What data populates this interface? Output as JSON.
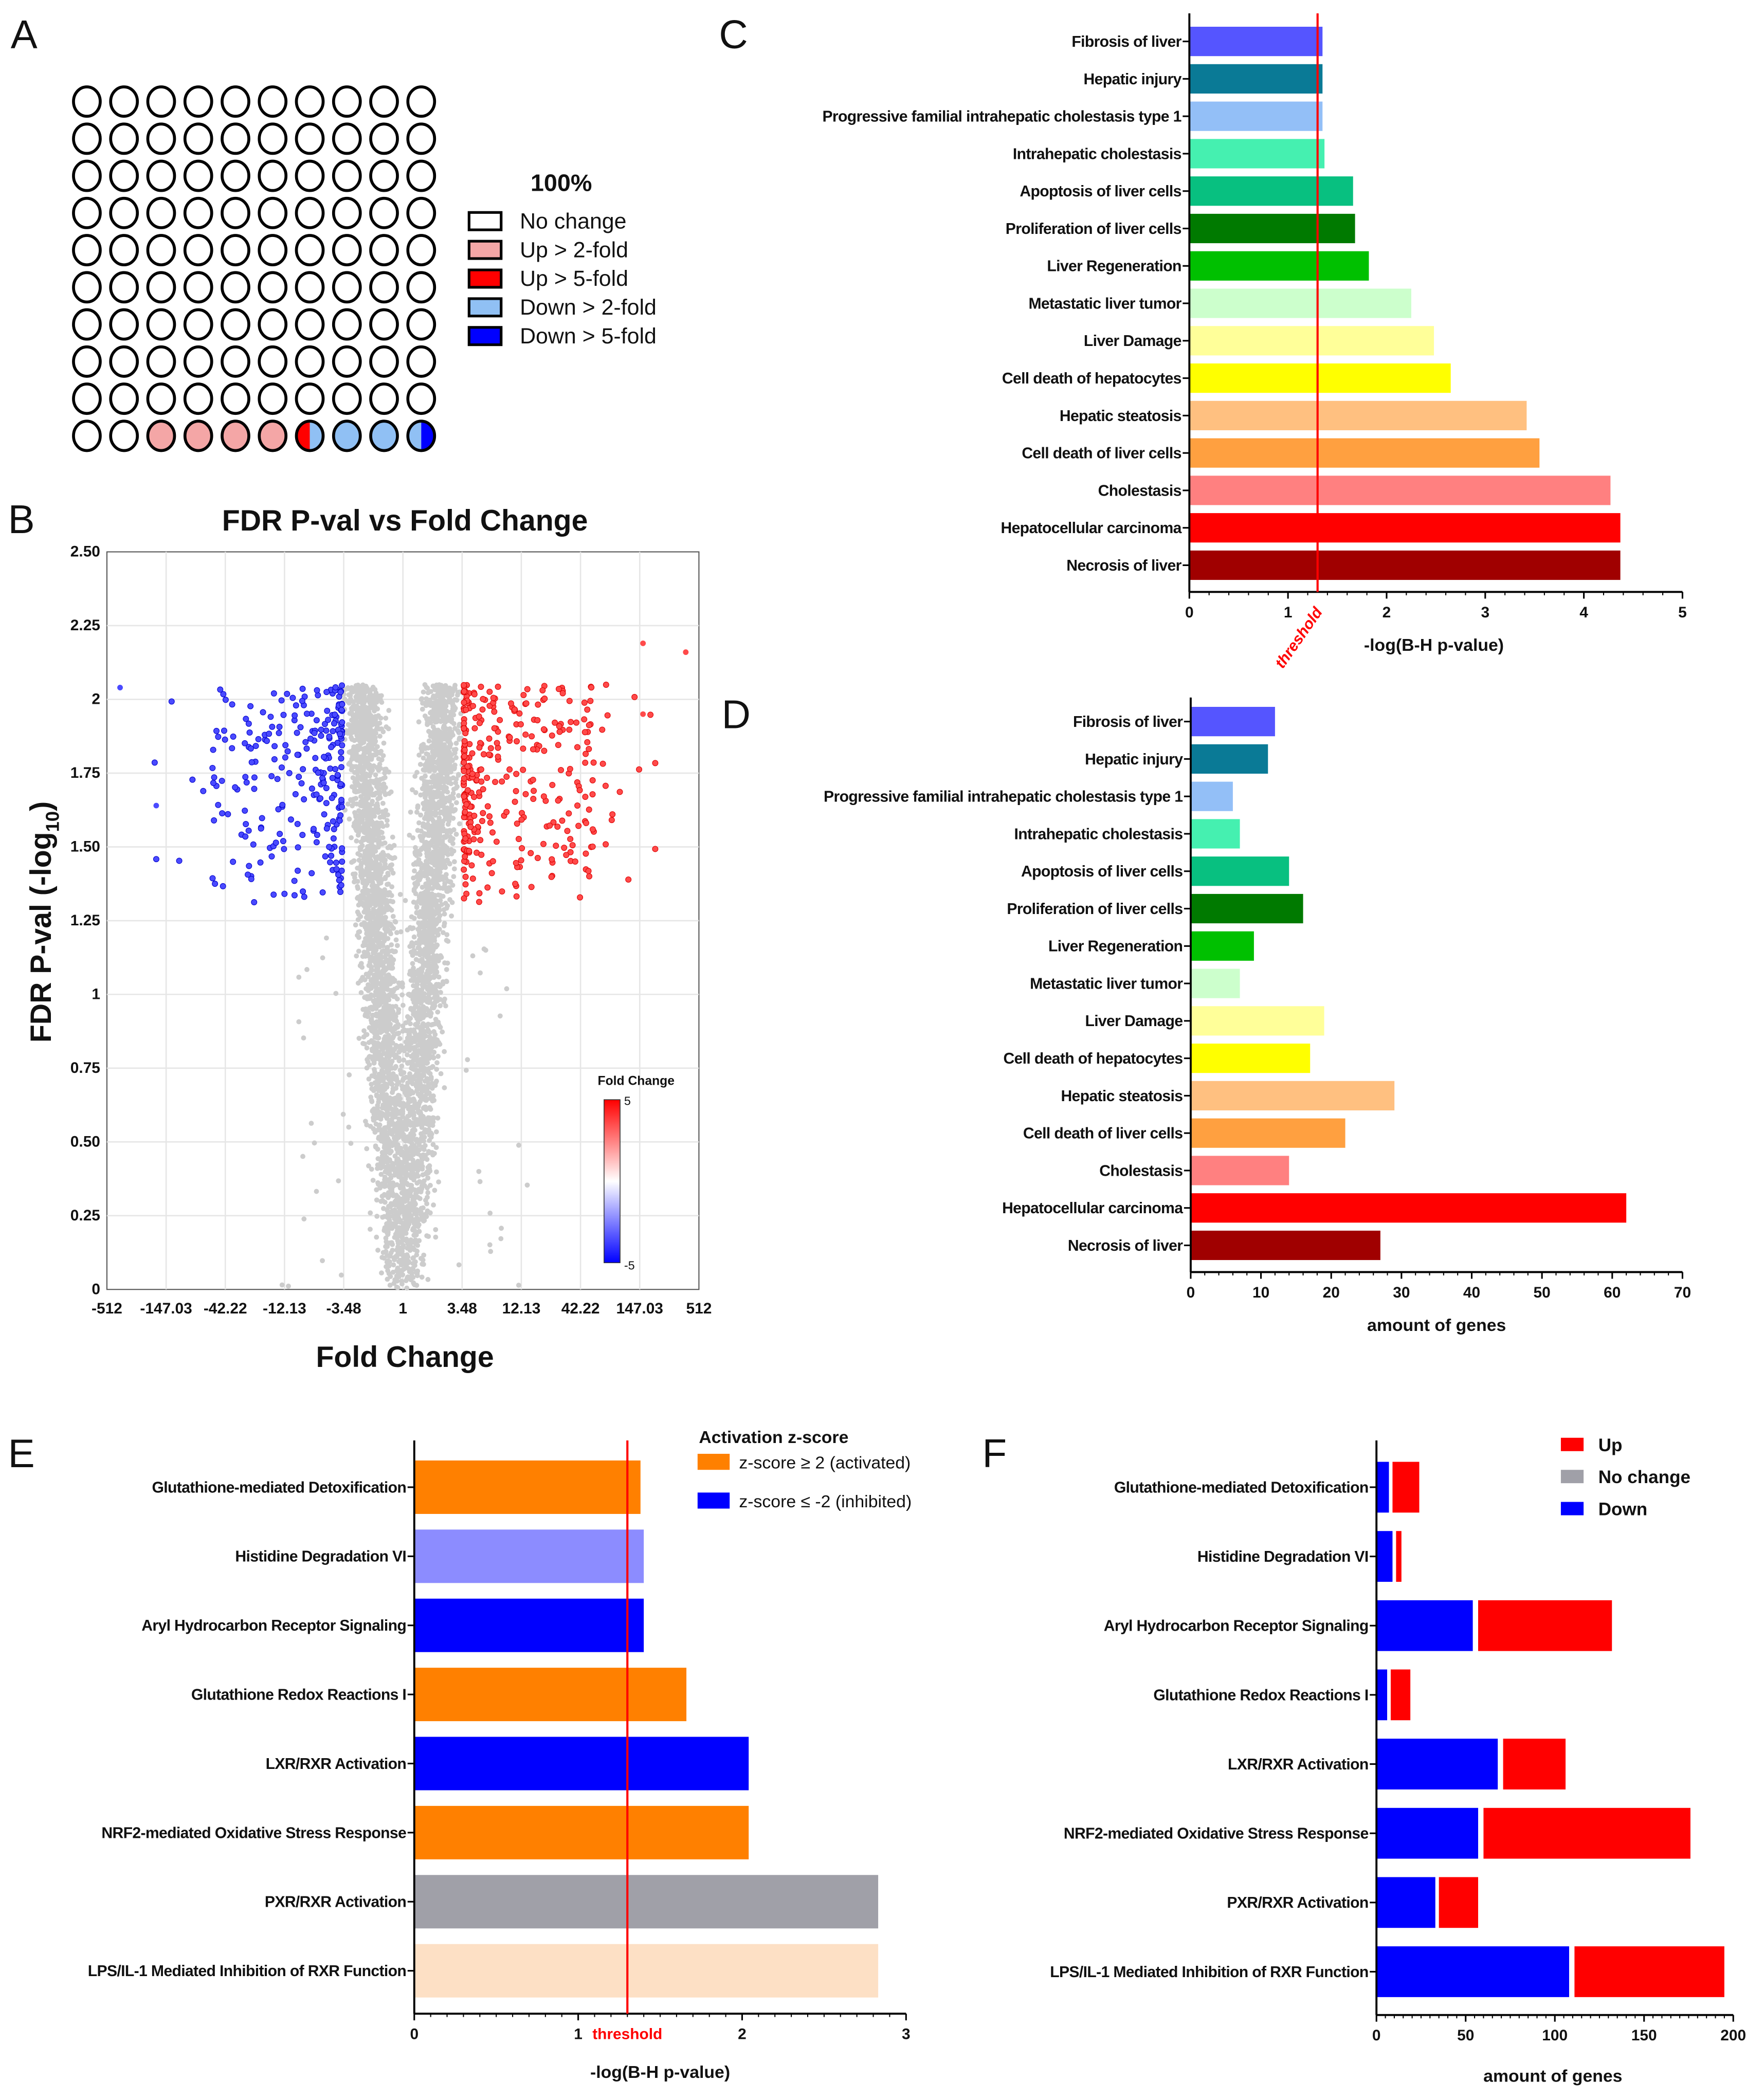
{
  "panel_labels": {
    "A": "A",
    "B": "B",
    "C": "C",
    "D": "D",
    "E": "E",
    "F": "F"
  },
  "chart_data": [
    {
      "id": "A",
      "type": "waffle",
      "title": "100%",
      "rows": 10,
      "cols": 10,
      "uniform_rows": {
        "count": 9,
        "category": "none"
      },
      "last_row": [
        "none",
        "none",
        "up2",
        "up2",
        "up2",
        "up2",
        "up5|down2",
        "down2",
        "down2",
        "down2|down5"
      ],
      "legend": [
        {
          "key": "none",
          "label": "No change",
          "color": "#ffffff"
        },
        {
          "key": "up2",
          "label": "Up > 2-fold",
          "color": "#f4a6a6"
        },
        {
          "key": "up5",
          "label": "Up > 5-fold",
          "color": "#ff0000"
        },
        {
          "key": "down2",
          "label": "Down > 2-fold",
          "color": "#90c0f4"
        },
        {
          "key": "down5",
          "label": "Down > 5-fold",
          "color": "#0000ff"
        }
      ]
    },
    {
      "id": "B",
      "type": "scatter",
      "title": "FDR P-val vs Fold Change",
      "xlabel": "Fold Change",
      "ylabel_main": "FDR P-val (-log",
      "ylabel_sub": "10",
      "ylabel_end": ")",
      "x_scale": "log2 fold change",
      "xlim_log2": [
        -9,
        9
      ],
      "ylim": [
        0,
        2.5
      ],
      "x_ticks": [
        "-512",
        "-147.03",
        "-42.22",
        "-12.13",
        "-3.48",
        "1",
        "3.48",
        "12.13",
        "42.22",
        "147.03",
        "512"
      ],
      "y_ticks": [
        "0",
        "0.25",
        "0.50",
        "0.75",
        "1",
        "1.25",
        "1.50",
        "1.75",
        "2",
        "2.25",
        "2.50"
      ],
      "grid": true,
      "series": [
        {
          "name": "No change",
          "color": "#cccccc",
          "approx_points": 4500
        },
        {
          "name": "Down",
          "color": "#3333ff",
          "approx_points": 260,
          "fold_change_max": -3.48,
          "y_min": 1.3
        },
        {
          "name": "Up",
          "color": "#ff3333",
          "approx_points": 340,
          "fold_change_min": 3.48,
          "y_min": 1.3
        }
      ],
      "colorbar": {
        "title": "Fold Change",
        "max_label": "5",
        "min_label": "-5",
        "max_color": "#ff0000",
        "min_color": "#0000ff",
        "placement": "bottom-right"
      }
    },
    {
      "id": "C",
      "type": "bar",
      "orientation": "horizontal",
      "categories": [
        "Fibrosis of liver",
        "Hepatic injury",
        "Progressive familial intrahepatic cholestasis type 1",
        "Intrahepatic cholestasis",
        "Apoptosis of liver cells",
        "Proliferation of liver cells",
        "Liver Regeneration",
        "Metastatic liver tumor",
        "Liver Damage",
        "Cell death of hepatocytes",
        "Hepatic steatosis",
        "Cell death of liver cells",
        "Cholestasis",
        "Hepatocellular carcinoma",
        "Necrosis of liver"
      ],
      "values": [
        1.35,
        1.35,
        1.35,
        1.37,
        1.66,
        1.68,
        1.82,
        2.25,
        2.48,
        2.65,
        3.42,
        3.55,
        4.27,
        4.37,
        4.37
      ],
      "colors": [
        "#5555ff",
        "#0a7a96",
        "#93bff7",
        "#45f0b0",
        "#08c080",
        "#007a00",
        "#00c000",
        "#ccffcc",
        "#ffff99",
        "#ffff00",
        "#ffc080",
        "#ffa040",
        "#ff8080",
        "#ff0000",
        "#a00000"
      ],
      "xlabel": "-log(B-H p-value)",
      "xlim": [
        0,
        5
      ],
      "x_ticks": [
        "0",
        "1",
        "2",
        "3",
        "4",
        "5"
      ],
      "threshold": {
        "value": 1.3,
        "label": "threshold",
        "color": "#ff0000"
      }
    },
    {
      "id": "D",
      "type": "bar",
      "orientation": "horizontal",
      "categories": [
        "Fibrosis of liver",
        "Hepatic injury",
        "Progressive familial intrahepatic cholestasis type 1",
        "Intrahepatic cholestasis",
        "Apoptosis of liver cells",
        "Proliferation of liver cells",
        "Liver Regeneration",
        "Metastatic liver tumor",
        "Liver Damage",
        "Cell death of hepatocytes",
        "Hepatic steatosis",
        "Cell death of liver cells",
        "Cholestasis",
        "Hepatocellular carcinoma",
        "Necrosis of liver"
      ],
      "values": [
        12,
        11,
        6,
        7,
        14,
        16,
        9,
        7,
        19,
        17,
        29,
        22,
        14,
        62,
        27
      ],
      "colors": [
        "#5555ff",
        "#0a7a96",
        "#93bff7",
        "#45f0b0",
        "#08c080",
        "#007a00",
        "#00c000",
        "#ccffcc",
        "#ffff99",
        "#ffff00",
        "#ffc080",
        "#ffa040",
        "#ff8080",
        "#ff0000",
        "#a00000"
      ],
      "xlabel": "amount of genes",
      "xlim": [
        0,
        70
      ],
      "x_ticks": [
        "0",
        "10",
        "20",
        "30",
        "40",
        "50",
        "60",
        "70"
      ]
    },
    {
      "id": "E",
      "type": "bar",
      "orientation": "horizontal",
      "categories": [
        "Glutathione-mediated Detoxification",
        "Histidine Degradation VI",
        "Aryl Hydrocarbon Receptor Signaling",
        "Glutathione Redox Reactions I",
        "LXR/RXR Activation",
        "NRF2-mediated Oxidative Stress Response",
        "PXR/RXR Activation",
        "LPS/IL-1 Mediated Inhibition of RXR Function"
      ],
      "values": [
        1.38,
        1.4,
        1.4,
        1.66,
        2.04,
        2.04,
        2.83,
        2.83
      ],
      "colors": [
        "#ff8000",
        "#8c8cff",
        "#0000ff",
        "#ff8000",
        "#0000ff",
        "#ff8000",
        "#a0a0a8",
        "#fde0c5"
      ],
      "xlabel": "-log(B-H p-value)",
      "xlim": [
        0,
        3
      ],
      "x_ticks": [
        "0",
        "1",
        "2",
        "3"
      ],
      "threshold": {
        "value": 1.3,
        "label": "threshold",
        "color": "#ff0000"
      },
      "legend": {
        "title": "Activation z-score",
        "items": [
          {
            "label": "z-score ≥ 2 (activated)",
            "color": "#ff8000"
          },
          {
            "label": "z-score ≤ -2 (inhibited)",
            "color": "#0000ff"
          }
        ]
      }
    },
    {
      "id": "F",
      "type": "bar",
      "orientation": "horizontal",
      "stacked": true,
      "categories": [
        "Glutathione-mediated Detoxification",
        "Histidine Degradation VI",
        "Aryl Hydrocarbon Receptor Signaling",
        "Glutathione Redox Reactions I",
        "LXR/RXR Activation",
        "NRF2-mediated Oxidative Stress Response",
        "PXR/RXR Activation",
        "LPS/IL-1 Mediated Inhibition of RXR Function"
      ],
      "series": [
        {
          "name": "Down",
          "color": "#0000ff",
          "values": [
            7,
            9,
            54,
            6,
            68,
            57,
            33,
            108
          ]
        },
        {
          "name": "No change",
          "color": "#a0a0a8",
          "values": [
            2,
            2,
            3,
            2,
            3,
            3,
            2,
            3
          ]
        },
        {
          "name": "Up",
          "color": "#ff0000",
          "values": [
            15,
            3,
            75,
            11,
            35,
            116,
            22,
            84
          ]
        }
      ],
      "legend_order": [
        "Up",
        "No change",
        "Down"
      ],
      "xlabel": "amount of genes",
      "xlim": [
        0,
        200
      ],
      "x_ticks": [
        "0",
        "50",
        "100",
        "150",
        "200"
      ]
    }
  ]
}
